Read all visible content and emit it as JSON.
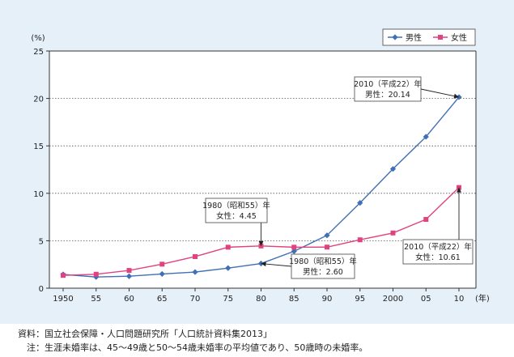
{
  "chart_data": {
    "type": "line",
    "x": [
      "1950",
      "55",
      "60",
      "65",
      "70",
      "75",
      "80",
      "85",
      "90",
      "95",
      "2000",
      "05",
      "10"
    ],
    "x_suffix": "(年)",
    "ylim": [
      0,
      25
    ],
    "yticks": [
      0,
      5,
      10,
      15,
      20,
      25
    ],
    "yunit": "(%)",
    "grid": "horizontal dotted",
    "legend": "top-right",
    "series": [
      {
        "name": "男性",
        "color": "#3f6fb5",
        "marker": "diamond",
        "values": [
          1.45,
          1.18,
          1.26,
          1.5,
          1.7,
          2.12,
          2.6,
          3.89,
          5.57,
          8.99,
          12.57,
          15.96,
          20.14
        ]
      },
      {
        "name": "女性",
        "color": "#e0437f",
        "marker": "square",
        "values": [
          1.35,
          1.47,
          1.87,
          2.53,
          3.33,
          4.32,
          4.45,
          4.32,
          4.33,
          5.1,
          5.82,
          7.25,
          10.61
        ]
      }
    ],
    "annotations": [
      {
        "series": 1,
        "point": 6,
        "lines": [
          "1980（昭和55）年",
          "女性：4.45"
        ]
      },
      {
        "series": 0,
        "point": 6,
        "lines": [
          "1980（昭和55）年",
          "男性：2.60"
        ]
      },
      {
        "series": 0,
        "point": 12,
        "lines": [
          "2010（平成22）年",
          "男性：20.14"
        ]
      },
      {
        "series": 1,
        "point": 12,
        "lines": [
          "2010（平成22）年",
          "女性：10.61"
        ]
      }
    ]
  },
  "notes": [
    "資料：国立社会保障・人口問題研究所「人口統計資料集2013」",
    "　注：生涯未婚率は、45～49歳と50～54歳未婚率の平均値であり、50歳時の未婚率。"
  ]
}
